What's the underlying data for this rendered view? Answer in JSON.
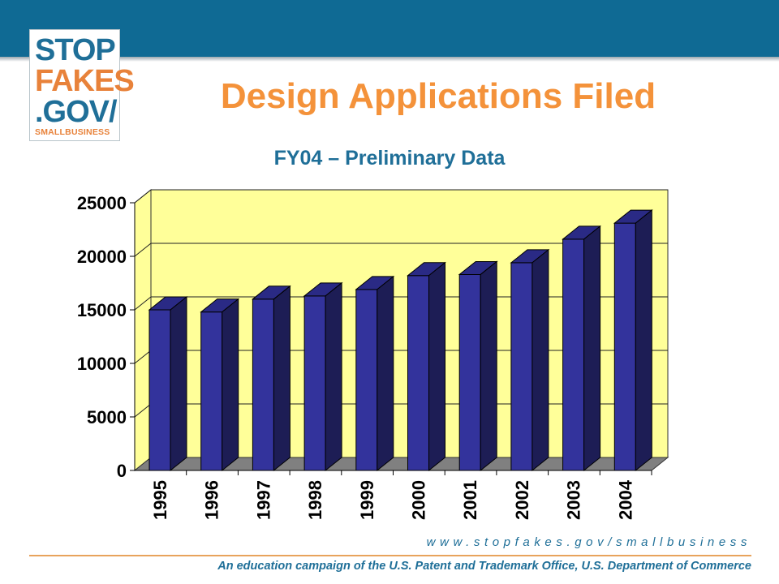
{
  "logo": {
    "line1": "STOP",
    "line2": "FAKES",
    "line3": ".GOV/",
    "line4": "SMALLBUSINESS"
  },
  "slide": {
    "title": "Design Applications Filed",
    "subtitle": "FY04 – Preliminary Data"
  },
  "footer": {
    "url": "www.stopfakes.gov/smallbusiness",
    "campaign": "An education campaign of the U.S. Patent and Trademark Office, U.S. Department of Commerce"
  },
  "colors": {
    "header_band": "#0f6a94",
    "title": "#f4923a",
    "subtitle": "#1f6f98",
    "bar_front": "#33339c",
    "plot_background": "#ffff99"
  },
  "chart_data": {
    "type": "bar",
    "style": "3d",
    "title": "",
    "xlabel": "",
    "ylabel": "",
    "categories": [
      "1995",
      "1996",
      "1997",
      "1998",
      "1999",
      "2000",
      "2001",
      "2002",
      "2003",
      "2004"
    ],
    "values": [
      15000,
      14800,
      16000,
      16300,
      16900,
      18200,
      18300,
      19400,
      21600,
      23100
    ],
    "ylim": [
      0,
      25000
    ],
    "yticks": [
      "0",
      "5000",
      "10000",
      "15000",
      "20000",
      "25000"
    ],
    "grid": true,
    "legend": "none"
  }
}
